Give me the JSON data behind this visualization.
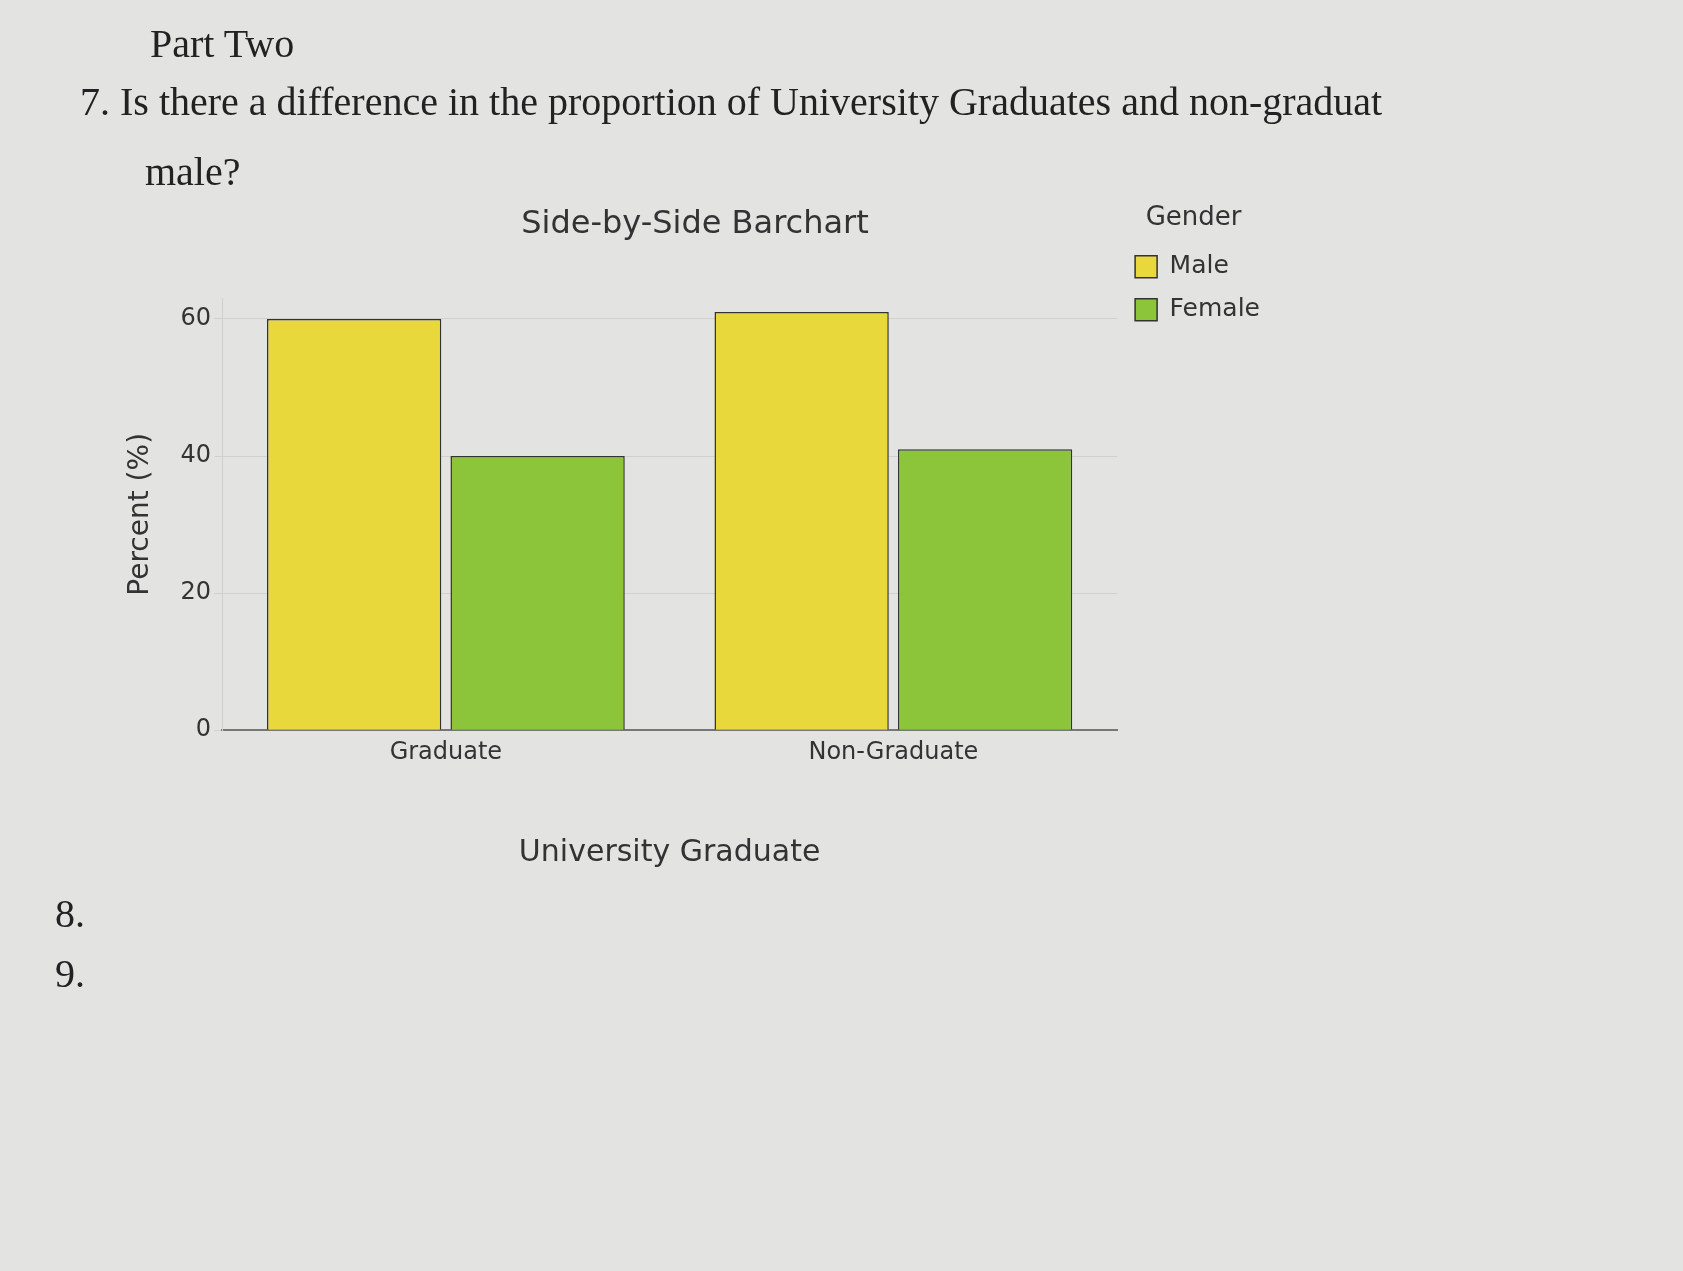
{
  "chart_data": {
    "type": "bar",
    "title": "Side-by-Side Barchart",
    "xlabel": "University Graduate",
    "ylabel": "Percent (%)",
    "legend_title": "Gender",
    "categories": [
      "Graduate",
      "Non-Graduate"
    ],
    "series": [
      {
        "name": "Male",
        "color": "#e8d83c",
        "values": [
          60,
          61
        ]
      },
      {
        "name": "Female",
        "color": "#8cc43a",
        "values": [
          40,
          41
        ]
      }
    ],
    "ylim": [
      0,
      63
    ],
    "yticks": [
      0,
      20,
      40,
      60
    ],
    "grid": "y",
    "legend": "top right",
    "annotations": [
      "Part Two",
      "7. Is there a difference in the proportion of University Graduates and non-graduat",
      "male?",
      "8.",
      "9."
    ]
  }
}
